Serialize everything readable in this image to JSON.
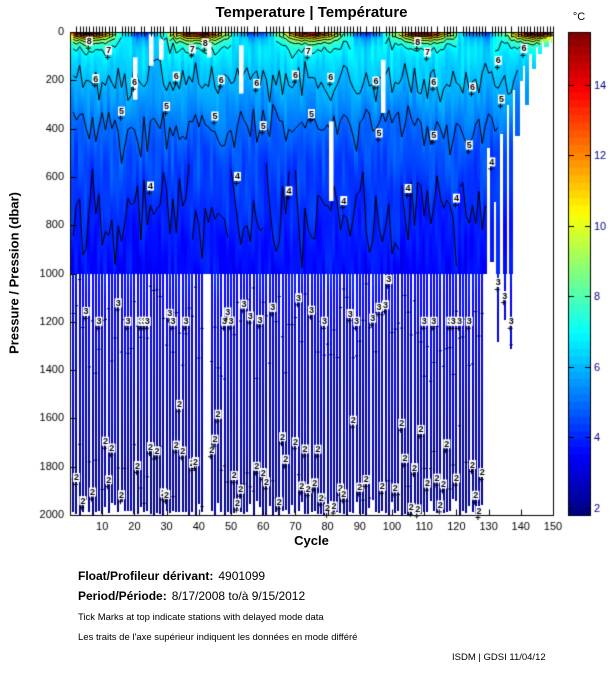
{
  "title": "Temperature | Température",
  "axes": {
    "xlabel": "Cycle",
    "ylabel": "Pressure / Pression (dbar)",
    "x_ticks": [
      10,
      20,
      30,
      40,
      50,
      60,
      70,
      80,
      90,
      100,
      110,
      120,
      130,
      140,
      150
    ],
    "y_ticks": [
      0,
      200,
      400,
      600,
      800,
      1000,
      1200,
      1400,
      1600,
      1800,
      2000
    ],
    "xlim": [
      0,
      150
    ],
    "ylim": [
      0,
      2000
    ]
  },
  "colorbar": {
    "label": "°C",
    "ticks": [
      2,
      4,
      6,
      8,
      10,
      12,
      14
    ],
    "min": 1.8,
    "max": 15.5,
    "colormap": "jet"
  },
  "chart_data": {
    "type": "heatmap",
    "title": "Temperature | Température",
    "xlabel": "Cycle",
    "ylabel": "Pressure / Pression (dbar)",
    "x_range": [
      1,
      150
    ],
    "y_range": [
      0,
      2000
    ],
    "value_label": "Temperature (°C)",
    "value_range": [
      1.8,
      15.5
    ],
    "colormap": "jet",
    "grid": false,
    "contour_levels": [
      2,
      3,
      4,
      5,
      6,
      7,
      8,
      9,
      10,
      11,
      12,
      13,
      14
    ],
    "seasonal_surface": {
      "period_cycles": 35,
      "peak_cycle": 5,
      "max_c": 15.0,
      "min_c": 4.2
    },
    "surface_layer_scale_dbar": 30,
    "mean_profile": {
      "pressure_dbar": [
        0,
        50,
        100,
        150,
        200,
        300,
        350,
        400,
        500,
        600,
        700,
        800,
        900,
        1000,
        1100,
        1200,
        1400,
        1600,
        1800,
        2000
      ],
      "temperature_c": [
        7.2,
        6.7,
        6.5,
        6.25,
        6.05,
        5.5,
        5.2,
        4.95,
        4.6,
        4.35,
        4.1,
        3.95,
        3.75,
        3.55,
        3.3,
        3.05,
        2.75,
        2.45,
        2.2,
        1.95
      ]
    },
    "deep_section": {
      "start_dbar": 1000,
      "cycle_range": [
        1,
        128
      ],
      "missing_cycles": [
        42,
        43
      ],
      "bar_bottom_dbar_range": [
        1930,
        2000
      ]
    },
    "upper_gaps": [
      [
        20,
        105,
        280
      ],
      [
        25,
        10,
        140
      ],
      [
        28,
        30,
        115
      ],
      [
        43,
        45,
        105
      ],
      [
        53,
        55,
        255
      ],
      [
        81,
        370,
        700
      ],
      [
        97,
        115,
        335
      ]
    ],
    "tail_profiles": [
      [
        129,
        1000
      ],
      [
        130,
        480
      ],
      [
        131,
        950
      ],
      [
        132,
        700
      ],
      [
        133,
        1280
      ],
      [
        134,
        420
      ],
      [
        135,
        1190
      ],
      [
        136,
        300
      ],
      [
        137,
        1310
      ],
      [
        138,
        240
      ],
      [
        139,
        430
      ],
      [
        140,
        200
      ],
      [
        141,
        140
      ],
      [
        142,
        300
      ],
      [
        143,
        90
      ],
      [
        144,
        150
      ],
      [
        145,
        60
      ],
      [
        146,
        90
      ],
      [
        147,
        40
      ],
      [
        148,
        60
      ],
      [
        149,
        30
      ],
      [
        150,
        45
      ]
    ],
    "contour_labels_upper": [
      [
        8,
        6,
        40
      ],
      [
        7,
        12,
        78
      ],
      [
        6,
        8,
        195
      ],
      [
        6,
        20,
        210
      ],
      [
        5,
        16,
        330
      ],
      [
        5,
        30,
        310
      ],
      [
        6,
        33,
        185
      ],
      [
        7,
        38,
        72
      ],
      [
        8,
        42,
        48
      ],
      [
        4,
        25,
        640
      ],
      [
        6,
        47,
        200
      ],
      [
        5,
        45,
        350
      ],
      [
        6,
        58,
        215
      ],
      [
        5,
        60,
        390
      ],
      [
        4,
        52,
        600
      ],
      [
        6,
        70,
        180
      ],
      [
        7,
        74,
        80
      ],
      [
        5,
        75,
        340
      ],
      [
        4,
        68,
        660
      ],
      [
        6,
        81,
        190
      ],
      [
        4,
        85,
        700
      ],
      [
        6,
        95,
        205
      ],
      [
        5,
        96,
        420
      ],
      [
        8,
        108,
        42
      ],
      [
        7,
        111,
        85
      ],
      [
        6,
        113,
        210
      ],
      [
        5,
        113,
        430
      ],
      [
        4,
        105,
        650
      ],
      [
        6,
        125,
        230
      ],
      [
        5,
        124,
        470
      ],
      [
        4,
        120,
        690
      ],
      [
        6,
        133,
        120
      ],
      [
        5,
        134,
        280
      ],
      [
        6,
        141,
        70
      ],
      [
        4,
        131,
        540
      ]
    ],
    "deep_contour_labels": [
      {
        "level": 3,
        "p_min": 1020,
        "p_max": 1200,
        "density": 0.27
      },
      {
        "level": 2,
        "p_min": 1540,
        "p_max": 1990,
        "density": 0.45
      }
    ],
    "delayed_mode_tick_density": 0.82,
    "noise_seed": 11
  },
  "footer": {
    "float_label": "Float/Profileur dérivant:",
    "float_value": "4901099",
    "period_label": "Period/Période:",
    "period_value": "8/17/2008 to/à 9/15/2012",
    "note_en": "Tick Marks at top indicate stations with delayed mode data",
    "note_fr": "Les traits de l'axe supérieur indiquent les données en mode différé",
    "credit": "ISDM | GDSI 11/04/12"
  }
}
